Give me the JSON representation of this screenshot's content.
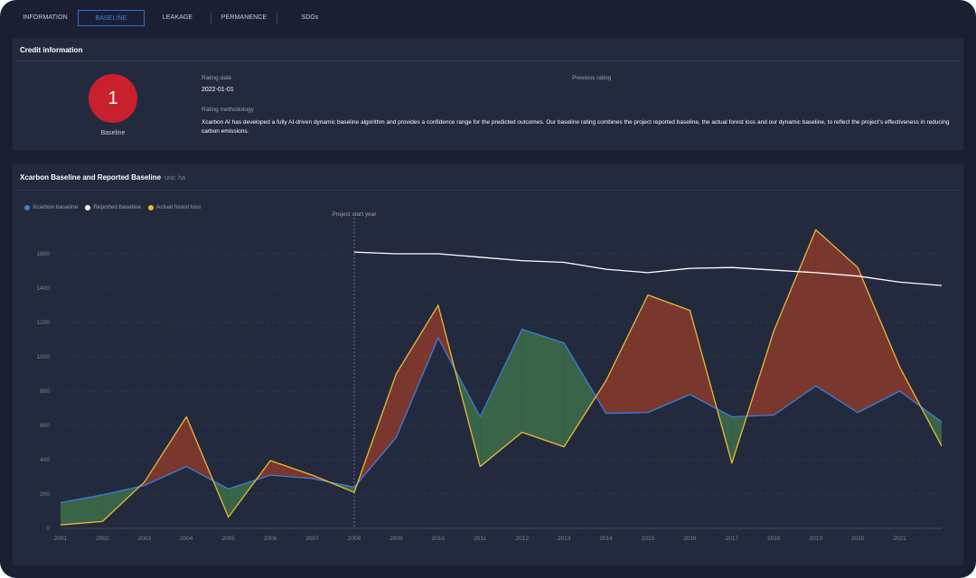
{
  "tabs": [
    {
      "label": "INFORMATION",
      "active": false
    },
    {
      "label": "BASELINE",
      "active": true
    },
    {
      "label": "LEAKAGE",
      "active": false
    },
    {
      "label": "PERMANENCE",
      "active": false
    },
    {
      "label": "SDGs",
      "active": false
    }
  ],
  "credit": {
    "title": "Credit information",
    "rating_value": "1",
    "rating_caption": "Baseline",
    "rating_date_label": "Rating date",
    "rating_date": "2022-01-01",
    "previous_rating_label": "Previous rating",
    "methodology_label": "Rating methodology",
    "methodology_text": "Xcarbon AI has developed a fully AI-driven dynamic baseline algorithm and provides a confidence range for the predicted outcomes. Our baseline rating combines the project reported baseline, the actual forest loss and our dynamic baseline, to reflect the project's effectiveness in reducing carbon emissions."
  },
  "colors": {
    "xcarbon": "#3b7ddd",
    "reported": "#ffffff",
    "actual": "#e8b93a",
    "fill_over": "#8a3a2a",
    "fill_under": "#3d6e4a",
    "rating": "#c8202c"
  },
  "chart_data": {
    "type": "line",
    "title": "Xcarbon Baseline and Reported Baseline",
    "unit": "unit: ha",
    "annotation": "Project start year",
    "annotation_x": "2008",
    "legend": [
      "Xcarbon baseline",
      "Reported baseline",
      "Actual forest loss"
    ],
    "legend_position": "top-left",
    "ylim": [
      0,
      1600
    ],
    "yticks": [
      0,
      200,
      400,
      600,
      800,
      1000,
      1200,
      1400,
      1600
    ],
    "grid": true,
    "x": [
      2001,
      2002,
      2003,
      2004,
      2005,
      2006,
      2007,
      2008,
      2009,
      2010,
      2011,
      2012,
      2013,
      2014,
      2015,
      2016,
      2017,
      2018,
      2019,
      2020,
      2021,
      2022
    ],
    "x_tick_labels": [
      "2001",
      "2002",
      "2003",
      "2004",
      "2005",
      "2006",
      "2007",
      "2008",
      "2009",
      "2010",
      "2011",
      "2012",
      "2013",
      "2014",
      "2015",
      "2016",
      "2017",
      "2018",
      "2019",
      "2020",
      "2021",
      ""
    ],
    "series": [
      {
        "name": "Xcarbon baseline",
        "values": [
          150,
          195,
          250,
          360,
          230,
          310,
          290,
          240,
          530,
          1110,
          650,
          1160,
          1080,
          670,
          675,
          780,
          650,
          660,
          830,
          675,
          800,
          620
        ]
      },
      {
        "name": "Reported baseline",
        "values": [
          null,
          null,
          null,
          null,
          null,
          null,
          null,
          1610,
          1600,
          1600,
          1580,
          1560,
          1550,
          1510,
          1490,
          1515,
          1520,
          1505,
          1490,
          1470,
          1435,
          1415
        ]
      },
      {
        "name": "Actual forest loss",
        "values": [
          20,
          40,
          270,
          650,
          65,
          395,
          310,
          210,
          900,
          1300,
          360,
          560,
          475,
          860,
          1360,
          1270,
          380,
          1150,
          1740,
          1520,
          940,
          480
        ]
      }
    ]
  }
}
